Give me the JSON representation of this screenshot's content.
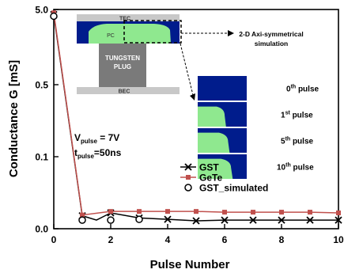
{
  "chart_data": {
    "type": "line",
    "xlabel": "Pulse Number",
    "ylabel": "Conductance G [mS]",
    "x_ticks": [
      "0",
      "2",
      "4",
      "6",
      "8",
      "10"
    ],
    "y_ticks": [
      "0.0",
      "0.1",
      "0.5",
      "5.0"
    ],
    "xlim": [
      0,
      10
    ],
    "y_axis_note": "piecewise scale with ticks 0.0, 0.1, 0.5, 5.0",
    "series": [
      {
        "name": "GST",
        "marker": "x-cross",
        "color": "#000000",
        "x": [
          0,
          1,
          1.5,
          2,
          3,
          4,
          5,
          6,
          7,
          8,
          9,
          10
        ],
        "y": [
          4.7,
          0.018,
          0.012,
          0.022,
          0.015,
          0.013,
          0.011,
          0.012,
          0.012,
          0.012,
          0.012,
          0.012
        ]
      },
      {
        "name": "GeTe",
        "marker": "filled-square",
        "color": "#c0504d",
        "x": [
          0,
          1,
          2,
          3,
          4,
          5,
          6,
          7,
          8,
          9,
          10
        ],
        "y": [
          4.8,
          0.019,
          0.024,
          0.024,
          0.024,
          0.024,
          0.023,
          0.023,
          0.023,
          0.023,
          0.022
        ]
      },
      {
        "name": "GST_simulated",
        "marker": "open-circle",
        "color": "#000000",
        "x": [
          0,
          1,
          2,
          3
        ],
        "y": [
          4.6,
          0.012,
          0.012,
          0.013
        ]
      }
    ],
    "legend_placement": "bottom-center"
  },
  "annotations": {
    "v_pulse_main": "V",
    "v_pulse_sub": "pulse",
    "v_pulse_value": " = 7V",
    "t_pulse_main": "t",
    "t_pulse_sub": "pulse",
    "t_pulse_value": "=50ns"
  },
  "inset_device": {
    "top_electrode": "TEC",
    "bottom_electrode": "BEC",
    "pc_label": "PC",
    "plug_line1": "TUNGSTEN",
    "plug_line2": "PLUG",
    "simulation_line1": "2-D Axi-symmetrical",
    "simulation_line2": "simulation",
    "colors": {
      "phase_region": "#001c8c",
      "crystal": "#8fe88f",
      "plug": "#7a7a7a",
      "electrode": "#c8c8c8"
    }
  },
  "inset_pulses": {
    "labels": [
      {
        "num": "0",
        "sup": "th",
        "word": " pulse",
        "fraction": 0.0
      },
      {
        "num": "1",
        "sup": "st",
        "word": " pulse",
        "fraction": 0.55
      },
      {
        "num": "5",
        "sup": "th",
        "word": " pulse",
        "fraction": 0.62
      },
      {
        "num": "10",
        "sup": "th",
        "word": " pulse",
        "fraction": 0.68
      }
    ]
  }
}
